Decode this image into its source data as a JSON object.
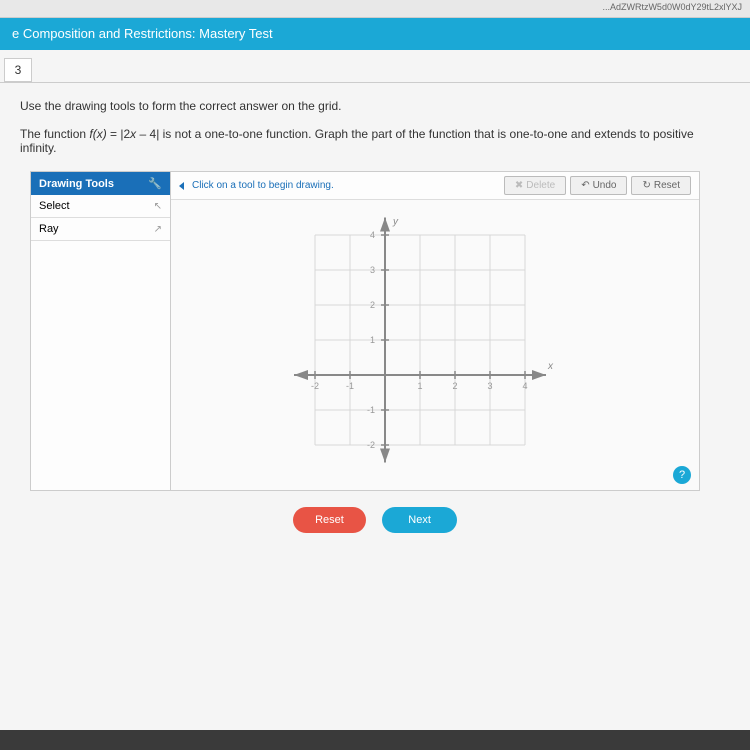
{
  "url_fragment": "...AdZWRtzW5d0W0dY29tL2xlYXJ",
  "header": {
    "title": "e Composition and Restrictions: Mastery Test"
  },
  "question_number": "3",
  "instruction": "Use the drawing tools to form the correct answer on the grid.",
  "question": {
    "prefix": "The function ",
    "fx": "f(x)",
    "equals": " = |2",
    "x": "x",
    "suffix": " – 4| is not a one-to-one function. Graph the part of the function that is one-to-one and extends to positive infinity."
  },
  "tools": {
    "header": "Drawing Tools",
    "items": [
      {
        "label": "Select",
        "icon": "↖"
      },
      {
        "label": "Ray",
        "icon": "↗"
      }
    ]
  },
  "canvas": {
    "hint": "Click on a tool to begin drawing.",
    "delete_btn": "Delete",
    "undo_btn": "Undo",
    "reset_btn": "Reset"
  },
  "graph": {
    "x_label": "x",
    "y_label": "y",
    "x_ticks": [
      -2,
      -1,
      1,
      2,
      3,
      4
    ],
    "y_ticks_pos": [
      1,
      2,
      3,
      4
    ],
    "y_ticks_neg": [
      -1,
      -2
    ],
    "grid_color": "#d8d8d8",
    "axis_color": "#888",
    "tick_label_color": "#999",
    "unit": 35
  },
  "buttons": {
    "reset": "Reset",
    "next": "Next"
  },
  "colors": {
    "header_bg": "#1ba8d6",
    "tools_header_bg": "#1a6fb8",
    "reset_btn": "#e85445",
    "next_btn": "#1ba8d6"
  }
}
